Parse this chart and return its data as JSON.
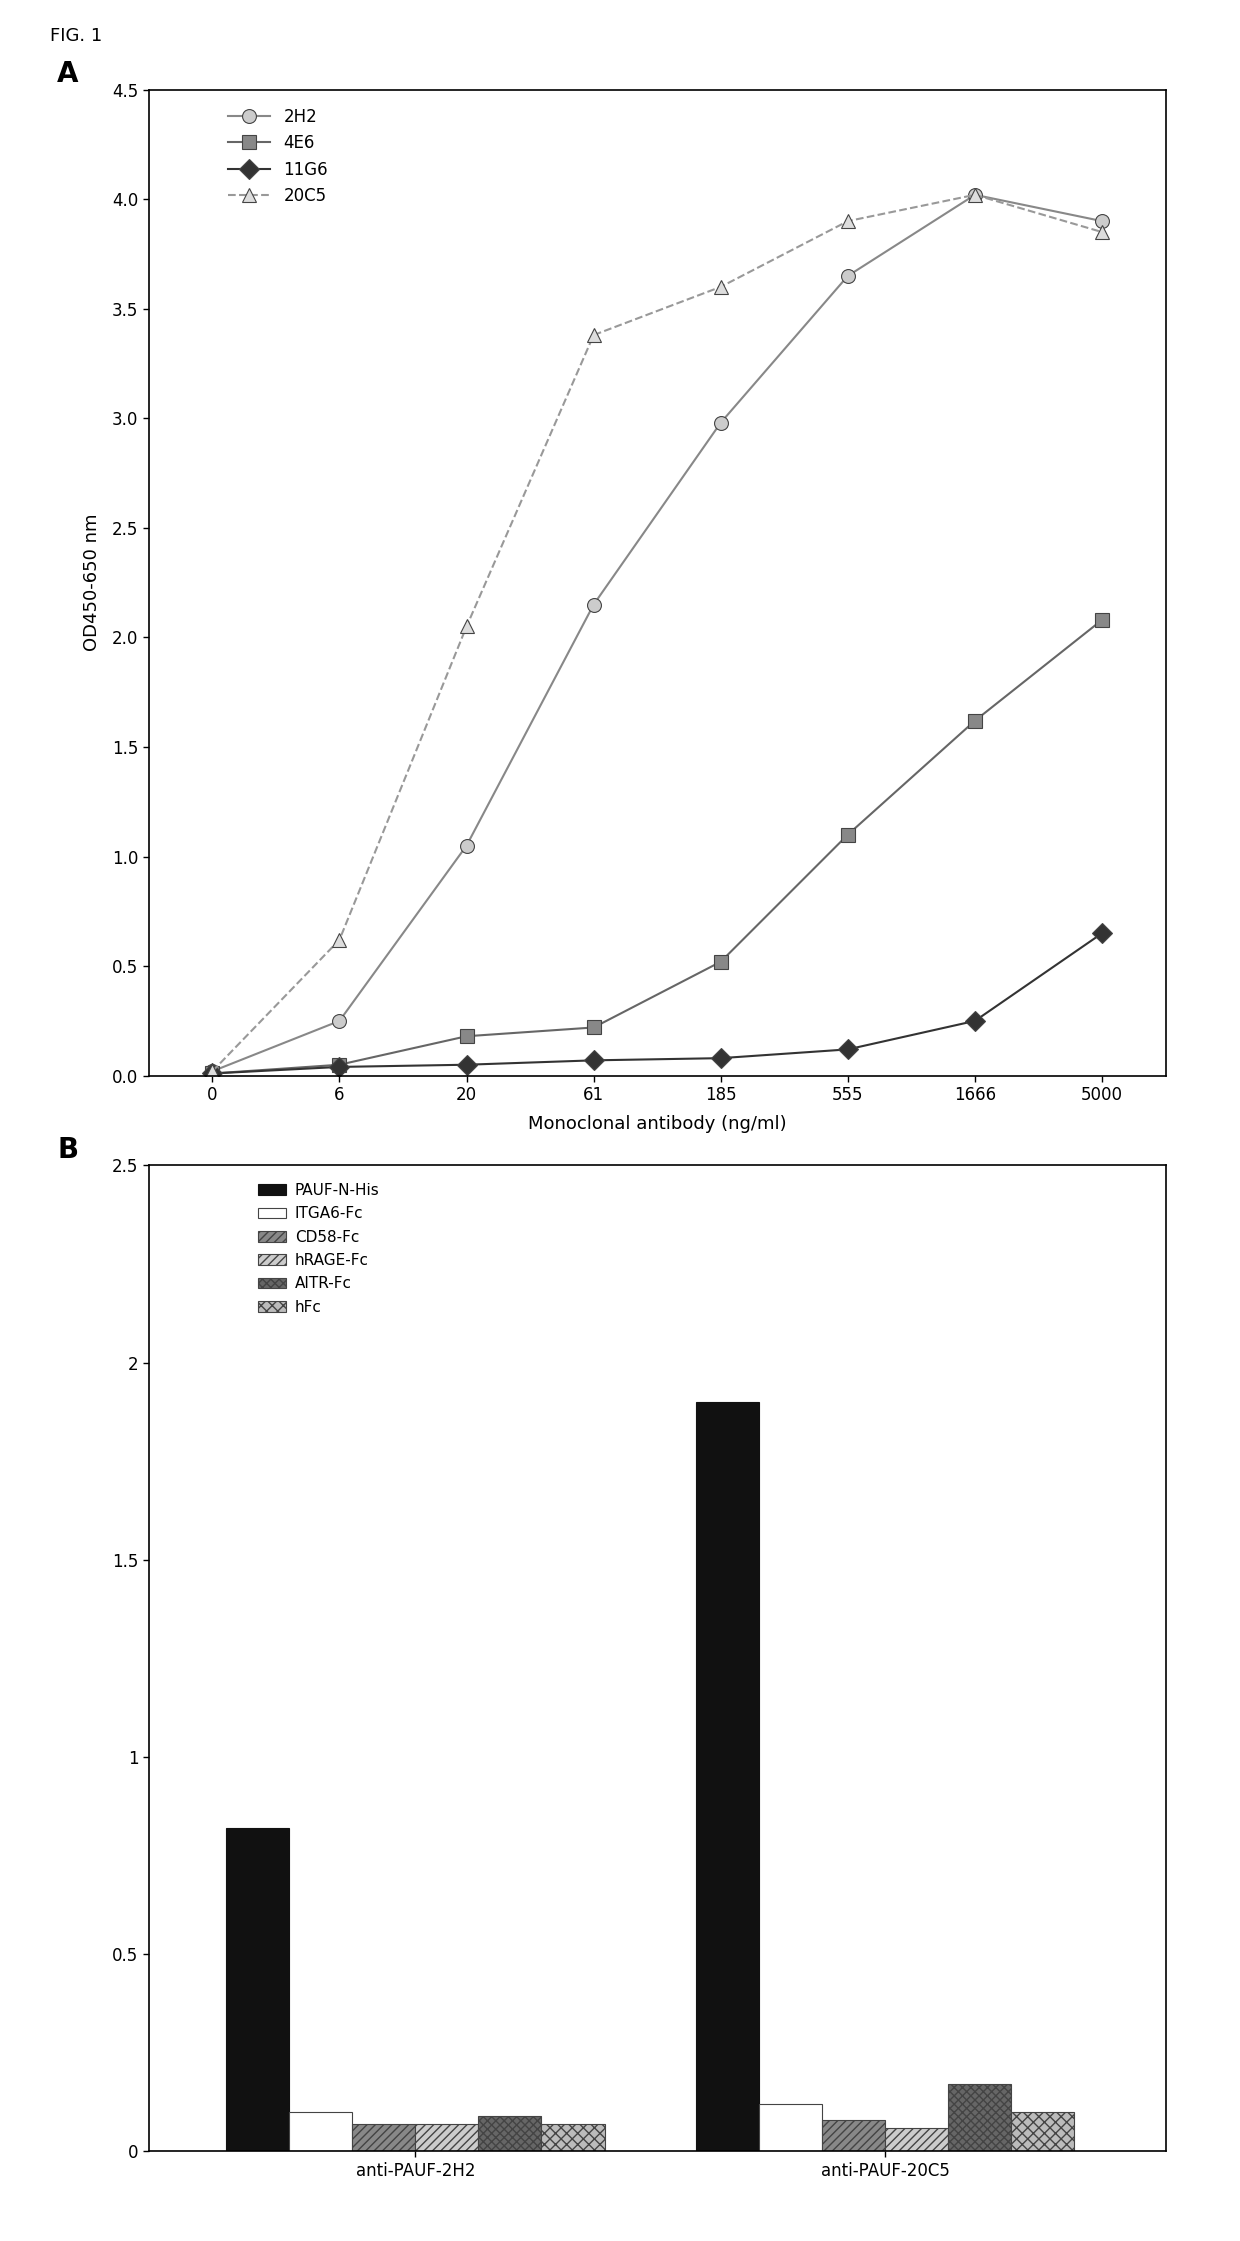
{
  "fig_label": "FIG. 1",
  "panel_A": {
    "label": "A",
    "x_values": [
      0,
      6,
      20,
      61,
      185,
      555,
      1666,
      5000
    ],
    "x_labels": [
      "0",
      "6",
      "20",
      "61",
      "185",
      "555",
      "1666",
      "5000"
    ],
    "xlabel": "Monoclonal antibody (ng/ml)",
    "ylabel": "OD450-650 nm",
    "ylim": [
      0,
      4.5
    ],
    "yticks": [
      0.0,
      0.5,
      1.0,
      1.5,
      2.0,
      2.5,
      3.0,
      3.5,
      4.0,
      4.5
    ],
    "series": [
      {
        "label": "2H2",
        "values": [
          0.02,
          0.25,
          1.05,
          2.15,
          2.98,
          3.65,
          4.02,
          3.9
        ],
        "marker": "o",
        "markerfacecolor": "#cccccc",
        "color": "#888888",
        "linestyle": "-"
      },
      {
        "label": "4E6",
        "values": [
          0.01,
          0.05,
          0.18,
          0.22,
          0.52,
          1.1,
          1.62,
          2.08
        ],
        "marker": "s",
        "markerfacecolor": "#888888",
        "color": "#666666",
        "linestyle": "-"
      },
      {
        "label": "11G6",
        "values": [
          0.01,
          0.04,
          0.05,
          0.07,
          0.08,
          0.12,
          0.25,
          0.65
        ],
        "marker": "D",
        "markerfacecolor": "#333333",
        "color": "#333333",
        "linestyle": "-"
      },
      {
        "label": "20C5",
        "values": [
          0.02,
          0.62,
          2.05,
          3.38,
          3.6,
          3.9,
          4.02,
          3.85
        ],
        "marker": "^",
        "markerfacecolor": "#dddddd",
        "color": "#999999",
        "linestyle": "--"
      }
    ]
  },
  "panel_B": {
    "label": "B",
    "ylim": [
      0,
      2.5
    ],
    "yticks": [
      0,
      0.5,
      1.0,
      1.5,
      2.0,
      2.5
    ],
    "ytick_labels": [
      "0",
      "0.5",
      "1",
      "1.5",
      "2",
      "2.5"
    ],
    "groups": [
      "anti-PAUF-2H2",
      "anti-PAUF-20C5"
    ],
    "categories": [
      "PAUF-N-His",
      "ITGA6-Fc",
      "CD58-Fc",
      "hRAGE-Fc",
      "AITR-Fc",
      "hFc"
    ],
    "hatch_patterns": [
      "",
      "",
      "////",
      "////",
      "xxxx",
      "xxx"
    ],
    "bar_facecolors": [
      "#111111",
      "#ffffff",
      "#888888",
      "#cccccc",
      "#666666",
      "#bbbbbb"
    ],
    "bar_edgecolors": [
      "#111111",
      "#444444",
      "#444444",
      "#444444",
      "#444444",
      "#444444"
    ],
    "data": {
      "anti-PAUF-2H2": [
        0.82,
        0.1,
        0.07,
        0.07,
        0.09,
        0.07
      ],
      "anti-PAUF-20C5": [
        1.9,
        0.12,
        0.08,
        0.06,
        0.17,
        0.1
      ]
    }
  }
}
